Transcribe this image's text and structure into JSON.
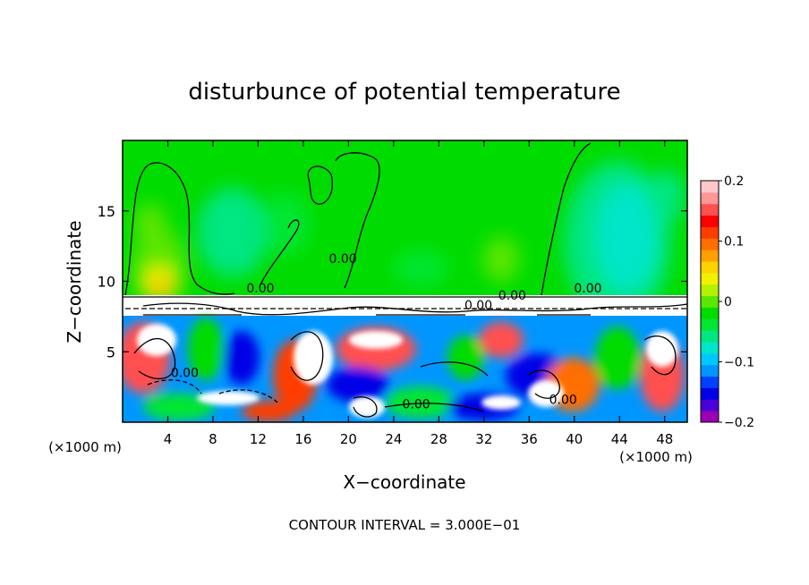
{
  "chart_data": {
    "type": "heatmap",
    "title": "disturbunce of potential temperature",
    "xlabel": "X−coordinate",
    "ylabel": "Z−coordinate",
    "x_unit_label": "(×1000 m)",
    "y_unit_label": "(×1000 m)",
    "xlim": [
      0,
      50
    ],
    "ylim": [
      0,
      20
    ],
    "x_ticks": [
      {
        "value": 4,
        "label": "4"
      },
      {
        "value": 8,
        "label": "8"
      },
      {
        "value": 12,
        "label": "12"
      },
      {
        "value": 16,
        "label": "16"
      },
      {
        "value": 20,
        "label": "20"
      },
      {
        "value": 24,
        "label": "24"
      },
      {
        "value": 28,
        "label": "28"
      },
      {
        "value": 32,
        "label": "32"
      },
      {
        "value": 36,
        "label": "36"
      },
      {
        "value": 40,
        "label": "40"
      },
      {
        "value": 44,
        "label": "44"
      },
      {
        "value": 48,
        "label": "48"
      }
    ],
    "y_ticks": [
      {
        "value": 5,
        "label": "5"
      },
      {
        "value": 10,
        "label": "10"
      },
      {
        "value": 15,
        "label": "15"
      }
    ],
    "colorbar": {
      "range": [
        -0.2,
        0.2
      ],
      "ticks": [
        {
          "value": 0.2,
          "label": "0.2"
        },
        {
          "value": 0.1,
          "label": "0.1"
        },
        {
          "value": 0,
          "label": "0"
        },
        {
          "value": -0.1,
          "label": "−0.1"
        },
        {
          "value": -0.2,
          "label": "−0.2"
        }
      ],
      "colors": [
        "#9a00b4",
        "#4b00d8",
        "#0000e6",
        "#0041ff",
        "#0096ff",
        "#00c8ff",
        "#00e6c8",
        "#00e680",
        "#00e632",
        "#00dc00",
        "#5ae600",
        "#b4f000",
        "#f0f000",
        "#ffd200",
        "#ffa000",
        "#ff6e00",
        "#ff3c00",
        "#ff0000",
        "#ff5050",
        "#ff9696",
        "#ffc8c8"
      ]
    },
    "contour_labels": [
      {
        "x": 12.2,
        "z": 9.2,
        "label": "0.00"
      },
      {
        "x": 19.5,
        "z": 11.3,
        "label": "0.00"
      },
      {
        "x": 34.5,
        "z": 8.7,
        "label": "0.00"
      },
      {
        "x": 41.2,
        "z": 9.2,
        "label": "0.00"
      },
      {
        "x": 5.5,
        "z": 3.2,
        "label": "0.00"
      },
      {
        "x": 26,
        "z": 1.0,
        "label": "0.00"
      },
      {
        "x": 39,
        "z": 1.3,
        "label": "0.00"
      },
      {
        "x": 31.5,
        "z": 8.0,
        "label": "0.00"
      }
    ],
    "footer": "CONTOUR INTERVAL = 3.000E−01"
  }
}
